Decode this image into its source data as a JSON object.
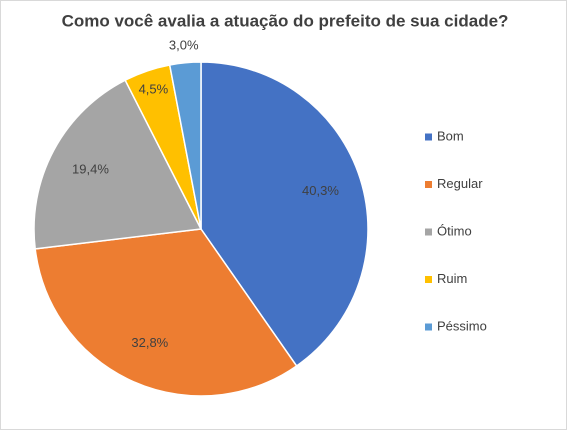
{
  "chart_data": {
    "type": "pie",
    "title": "Como você avalia a atuação do prefeito de sua cidade?",
    "categories": [
      "Bom",
      "Regular",
      "Ótimo",
      "Ruim",
      "Péssimo"
    ],
    "values": [
      40.3,
      32.8,
      19.4,
      4.5,
      3.0
    ],
    "value_labels": [
      "40,3%",
      "32,8%",
      "19,4%",
      "4,5%",
      "3,0%"
    ],
    "colors": [
      "#4472c4",
      "#ed7d31",
      "#a5a5a5",
      "#ffc000",
      "#5b9bd5"
    ],
    "legend": "right"
  }
}
